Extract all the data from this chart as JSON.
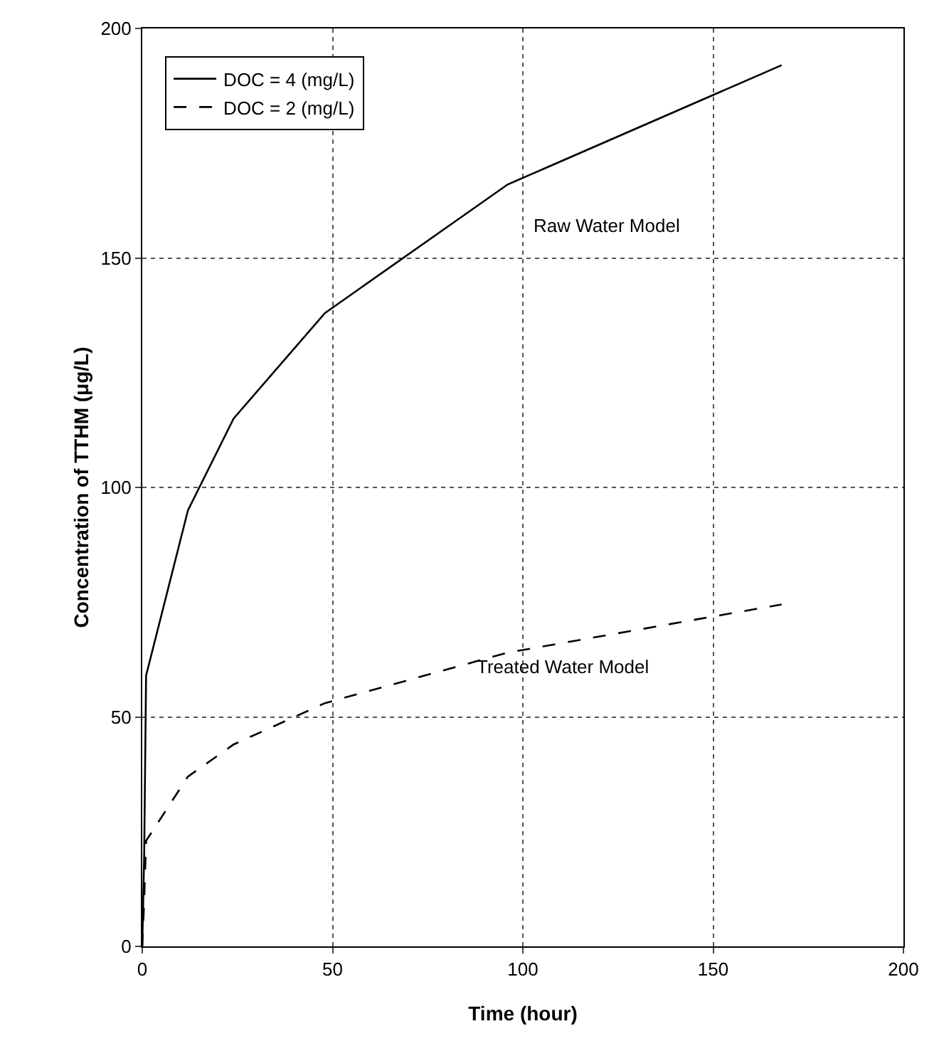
{
  "chart_data": {
    "type": "line",
    "xlabel": "Time (hour)",
    "ylabel": "Concentration of TTHM (μg/L)",
    "series": [
      {
        "name": "DOC = 4 (mg/L)",
        "color": "#000000",
        "line_style": "solid",
        "x": [
          0,
          0.5,
          1,
          12,
          24,
          48,
          96,
          168
        ],
        "values": [
          0,
          20,
          59,
          95,
          115,
          138,
          166,
          192
        ]
      },
      {
        "name": "DOC = 2 (mg/L)",
        "color": "#000000",
        "line_style": "dashed",
        "x": [
          0,
          0.5,
          1,
          12,
          24,
          48,
          96,
          168
        ],
        "values": [
          0,
          10,
          23,
          37,
          44,
          53,
          64,
          74.5
        ]
      }
    ],
    "annotations": [
      "Raw Water Model",
      "Treated Water Model"
    ],
    "xlim": [
      0,
      200
    ],
    "xticks": [
      0,
      50,
      100,
      150,
      200
    ],
    "ylim": [
      0,
      200
    ],
    "yticks": [
      0,
      50,
      100,
      150,
      200
    ],
    "grid": true,
    "legend": "top left",
    "marker": "none"
  }
}
